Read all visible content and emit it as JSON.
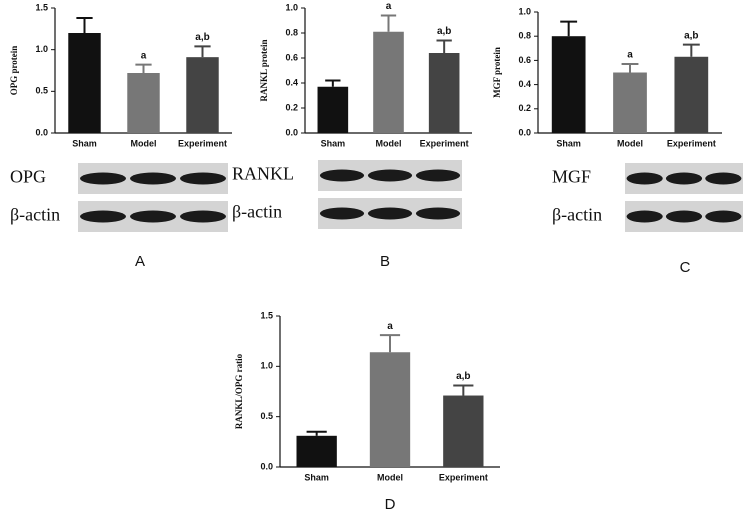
{
  "chart_data": [
    {
      "type": "bar",
      "panel": "A",
      "ylabel": "OPG protein",
      "blot_labels": [
        "OPG",
        "β-actin"
      ],
      "categories": [
        "Sham",
        "Model",
        "Experiment"
      ],
      "values": [
        1.2,
        0.72,
        0.91
      ],
      "errors": [
        0.18,
        0.1,
        0.13
      ],
      "annotations": [
        null,
        "a",
        "a,b"
      ],
      "colors": [
        "#111111",
        "#777777",
        "#444444"
      ],
      "ylim": [
        0,
        1.5
      ],
      "yticks": [
        {
          "value": 0,
          "label": "0.0"
        },
        0.5,
        {
          "value": 1,
          "label": "1.0"
        },
        1.5
      ]
    },
    {
      "type": "bar",
      "panel": "B",
      "ylabel": "RANKL protein",
      "blot_labels": [
        "RANKL",
        "β-actin"
      ],
      "categories": [
        "Sham",
        "Model",
        "Experiment"
      ],
      "values": [
        0.37,
        0.81,
        0.64
      ],
      "errors": [
        0.05,
        0.13,
        0.1
      ],
      "annotations": [
        null,
        "a",
        "a,b"
      ],
      "colors": [
        "#111111",
        "#777777",
        "#444444"
      ],
      "ylim": [
        0,
        1
      ],
      "yticks": [
        {
          "value": 0,
          "label": "0.0"
        },
        0.2,
        0.4,
        0.6,
        0.8,
        {
          "value": 1,
          "label": "1.0"
        }
      ]
    },
    {
      "type": "bar",
      "panel": "C",
      "ylabel": "MGF protein",
      "blot_labels": [
        "MGF",
        "β-actin"
      ],
      "categories": [
        "Sham",
        "Model",
        "Experiment"
      ],
      "values": [
        0.8,
        0.5,
        0.63
      ],
      "errors": [
        0.12,
        0.07,
        0.1
      ],
      "annotations": [
        null,
        "a",
        "a,b"
      ],
      "colors": [
        "#111111",
        "#777777",
        "#444444"
      ],
      "ylim": [
        0,
        1
      ],
      "yticks": [
        {
          "value": 0,
          "label": "0.0"
        },
        0.2,
        0.4,
        0.6,
        0.8,
        {
          "value": 1,
          "label": "1.0"
        }
      ]
    },
    {
      "type": "bar",
      "panel": "D",
      "ylabel": "RANKL/OPG ratio",
      "categories": [
        "Sham",
        "Model",
        "Experiment"
      ],
      "values": [
        0.31,
        1.14,
        0.71
      ],
      "errors": [
        0.04,
        0.17,
        0.1
      ],
      "annotations": [
        null,
        "a",
        "a,b"
      ],
      "colors": [
        "#111111",
        "#777777",
        "#444444"
      ],
      "ylim": [
        0,
        1.5
      ],
      "yticks": [
        {
          "value": 0,
          "label": "0.0"
        },
        0.5,
        {
          "value": 1,
          "label": "1.0"
        },
        1.5
      ]
    }
  ]
}
